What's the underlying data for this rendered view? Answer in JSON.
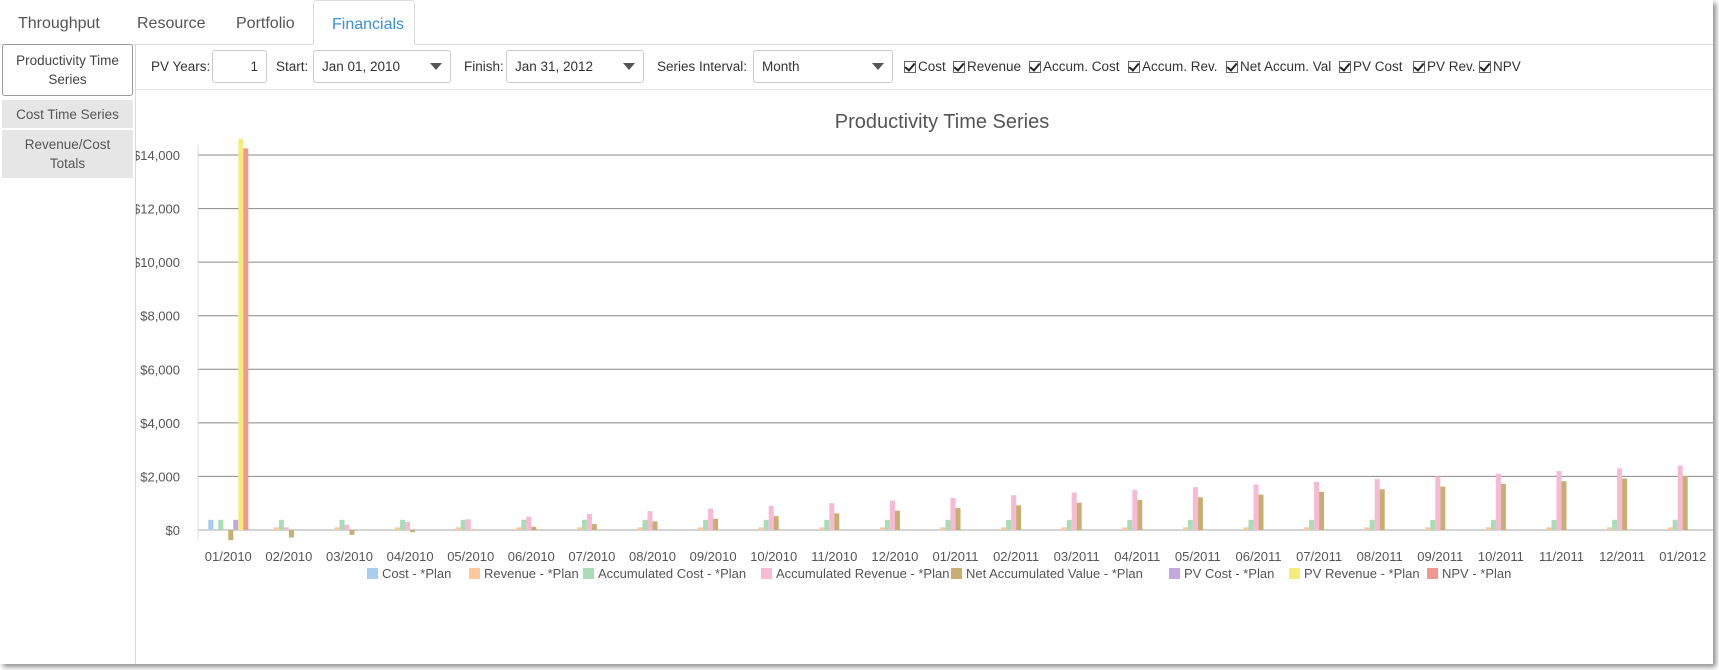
{
  "tabs": [
    {
      "label": "Throughput",
      "active": false
    },
    {
      "label": "Resource",
      "active": false
    },
    {
      "label": "Portfolio",
      "active": false
    },
    {
      "label": "Financials",
      "active": true
    }
  ],
  "sidebar": {
    "items": [
      {
        "label": "Productivity Time Series",
        "active": true
      },
      {
        "label": "Cost Time Series",
        "active": false
      },
      {
        "label": "Revenue/Cost Totals",
        "active": false
      }
    ]
  },
  "toolbar": {
    "pv_years_label": "PV Years:",
    "pv_years_value": "1",
    "start_label": "Start:",
    "start_value": "Jan 01, 2010",
    "finish_label": "Finish:",
    "finish_value": "Jan 31, 2012",
    "interval_label": "Series Interval:",
    "interval_value": "Month",
    "checkboxes": [
      {
        "label": "Cost",
        "checked": true
      },
      {
        "label": "Revenue",
        "checked": true
      },
      {
        "label": "Accum. Cost",
        "checked": true
      },
      {
        "label": "Accum. Rev.",
        "checked": true
      },
      {
        "label": "Net Accum. Val",
        "checked": true
      },
      {
        "label": "PV Cost",
        "checked": true
      },
      {
        "label": "PV Rev.",
        "checked": true
      },
      {
        "label": "NPV",
        "checked": true
      }
    ]
  },
  "colors": {
    "accent": "#3a8fd6",
    "grid": "#888888"
  },
  "chart_data": {
    "type": "bar",
    "title": "Productivity Time Series",
    "xlabel": "",
    "ylabel": "",
    "ylim": [
      0,
      14000
    ],
    "yticks": [
      "$0",
      "$2,000",
      "$4,000",
      "$6,000",
      "$8,000",
      "$10,000",
      "$12,000",
      "$14,000"
    ],
    "grid": true,
    "legend_position": "bottom",
    "categories": [
      "01/2010",
      "02/2010",
      "03/2010",
      "04/2010",
      "05/2010",
      "06/2010",
      "07/2010",
      "08/2010",
      "09/2010",
      "10/2010",
      "11/2010",
      "12/2010",
      "01/2011",
      "02/2011",
      "03/2011",
      "04/2011",
      "05/2011",
      "06/2011",
      "07/2011",
      "08/2011",
      "09/2011",
      "10/2011",
      "11/2011",
      "12/2011",
      "01/2012"
    ],
    "series": [
      {
        "name": "Cost - *Plan",
        "color": "#a9cdef",
        "values": [
          380,
          0,
          0,
          0,
          0,
          0,
          0,
          0,
          0,
          0,
          0,
          0,
          0,
          0,
          0,
          0,
          0,
          0,
          0,
          0,
          0,
          0,
          0,
          0,
          0
        ]
      },
      {
        "name": "Revenue - *Plan",
        "color": "#ffc89b",
        "values": [
          0,
          100,
          100,
          100,
          100,
          100,
          100,
          100,
          100,
          100,
          100,
          100,
          100,
          100,
          100,
          100,
          100,
          100,
          100,
          100,
          100,
          100,
          100,
          100,
          100
        ]
      },
      {
        "name": "Accumulated Cost - *Plan",
        "color": "#a8ddb5",
        "values": [
          380,
          380,
          380,
          380,
          380,
          380,
          380,
          380,
          380,
          380,
          380,
          380,
          380,
          380,
          380,
          380,
          380,
          380,
          380,
          380,
          380,
          380,
          380,
          380,
          380
        ]
      },
      {
        "name": "Accumulated Revenue - *Plan",
        "color": "#f7b9d4",
        "values": [
          0,
          100,
          200,
          300,
          400,
          500,
          600,
          700,
          800,
          900,
          1000,
          1100,
          1200,
          1300,
          1400,
          1500,
          1600,
          1700,
          1800,
          1900,
          2000,
          2100,
          2200,
          2300,
          2400
        ]
      },
      {
        "name": "Net Accumulated Value - *Plan",
        "color": "#c9ae72",
        "values": [
          -380,
          -280,
          -180,
          -80,
          20,
          120,
          220,
          320,
          420,
          520,
          620,
          720,
          820,
          920,
          1020,
          1120,
          1220,
          1320,
          1420,
          1520,
          1620,
          1720,
          1820,
          1920,
          2020
        ]
      },
      {
        "name": "PV Cost - *Plan",
        "color": "#c3a9e0",
        "values": [
          380,
          0,
          0,
          0,
          0,
          0,
          0,
          0,
          0,
          0,
          0,
          0,
          0,
          0,
          0,
          0,
          0,
          0,
          0,
          0,
          0,
          0,
          0,
          0,
          0
        ]
      },
      {
        "name": "PV Revenue - *Plan",
        "color": "#f6ec7a",
        "values": [
          14600,
          0,
          0,
          0,
          0,
          0,
          0,
          0,
          0,
          0,
          0,
          0,
          0,
          0,
          0,
          0,
          0,
          0,
          0,
          0,
          0,
          0,
          0,
          0,
          0
        ]
      },
      {
        "name": "NPV - *Plan",
        "color": "#f29892",
        "values": [
          14250,
          0,
          0,
          0,
          0,
          0,
          0,
          0,
          0,
          0,
          0,
          0,
          0,
          0,
          0,
          0,
          0,
          0,
          0,
          0,
          0,
          0,
          0,
          0,
          0
        ]
      }
    ]
  }
}
